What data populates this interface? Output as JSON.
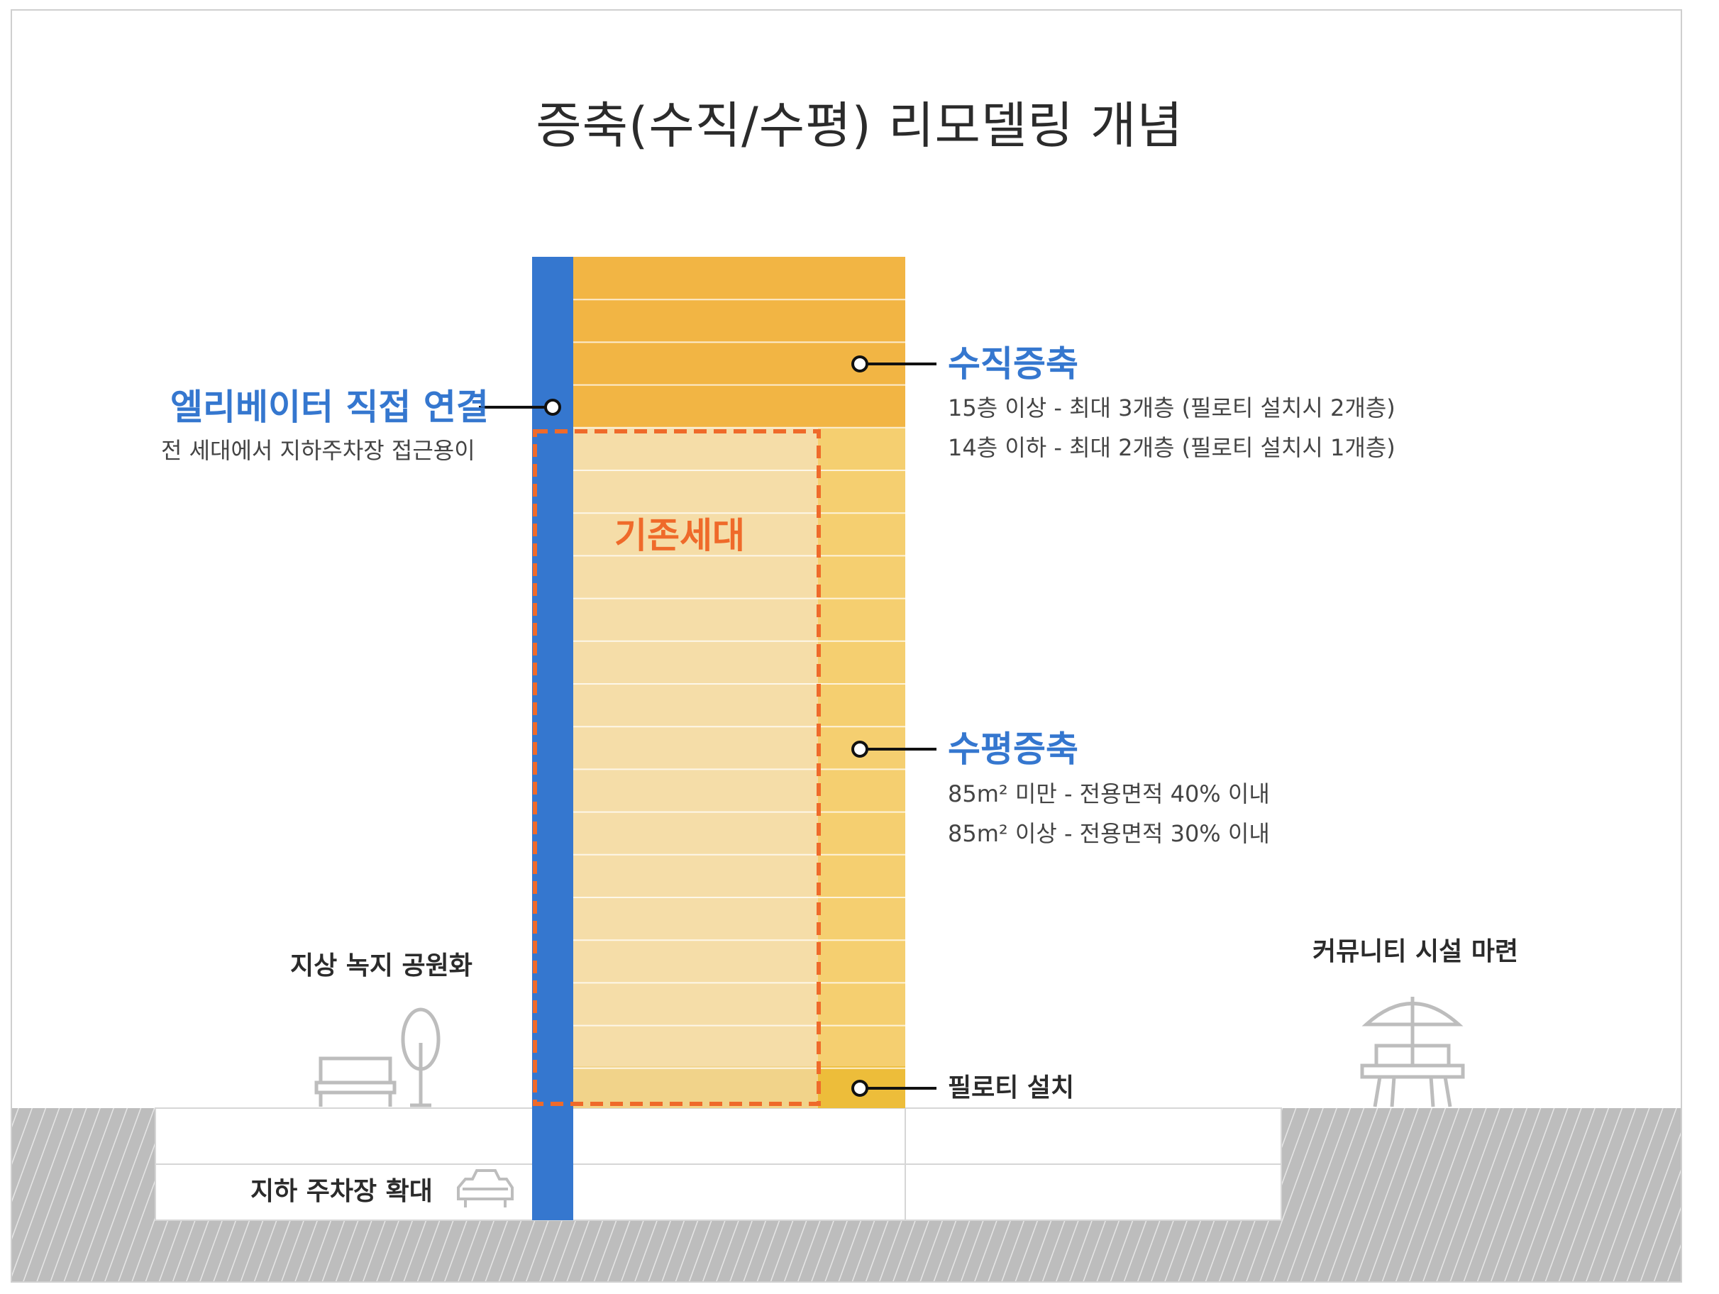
{
  "title": "증축(수직/수평) 리모델링 개념",
  "elevator": {
    "heading": "엘리베이터 직접 연결",
    "desc": "전 세대에서 지하주차장 접근용이"
  },
  "vertical": {
    "heading": "수직증축",
    "lines": [
      "15층 이상 - 최대 3개층 (필로티 설치시 2개층)",
      "14층 이하 - 최대 2개층 (필로티 설치시 1개층)"
    ]
  },
  "horizontal": {
    "heading": "수평증축",
    "lines": [
      "85m² 미만 - 전용면적 40% 이내",
      "85m² 이상 - 전용면적 30% 이내"
    ]
  },
  "existing_label": "기존세대",
  "piloti_label": "필로티 설치",
  "ground_park_label": "지상 녹지 공원화",
  "community_label": "커뮤니티 시설 마련",
  "parking_label": "지하 주차장 확대",
  "colors": {
    "elevator": "#3577cf",
    "vertical_extension": "#f2b544",
    "horizontal_extension": "#f5cf70",
    "existing_units": "#f5dda8",
    "piloti": "#edbd3a",
    "existing_outline": "#ef6a2a",
    "heading_blue": "#3577cf",
    "ground_hatch": "#bdbdbd"
  },
  "icons": [
    "tree-icon",
    "bench-icon",
    "parasol-table-icon",
    "car-icon"
  ]
}
